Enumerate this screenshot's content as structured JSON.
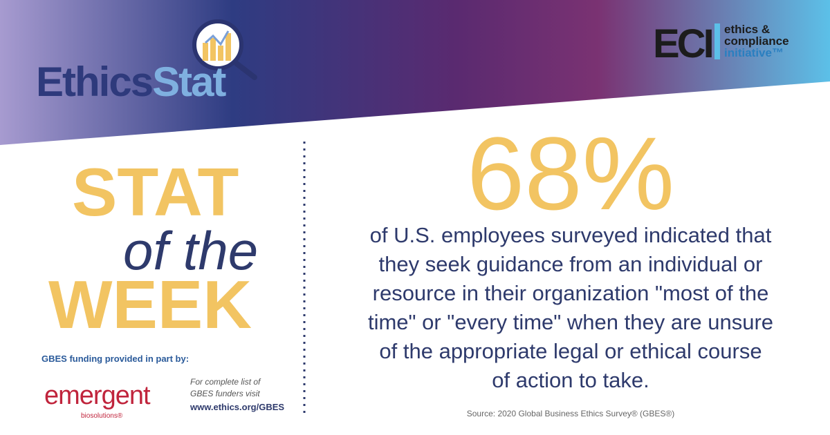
{
  "header": {
    "logo_left": {
      "part1": "Ethics",
      "part2": "Stat"
    },
    "logo_right": {
      "mark": "ECI",
      "line1": "ethics &",
      "line2": "compliance",
      "line3": "initiative™"
    }
  },
  "left": {
    "stat": "STAT",
    "of_the": "of the",
    "week": "WEEK",
    "funding": "GBES funding provided in part by:",
    "sponsor": "emergent",
    "sponsor_sub": "biosolutions®",
    "funders_note": [
      "For complete list of",
      "GBES funders visit"
    ],
    "funders_url": "www.ethics.org/GBES"
  },
  "right": {
    "figure": "68%",
    "statement_lines": [
      "of U.S. employees surveyed indicated that",
      "they seek guidance from an individual or",
      "resource in their organization \"most of the",
      "time\" or \"every time\" when they are unsure",
      "of the appropriate legal or ethical course",
      "of action to take."
    ],
    "source": "Source: 2020 Global Business Ethics Survey® (GBES®)"
  }
}
